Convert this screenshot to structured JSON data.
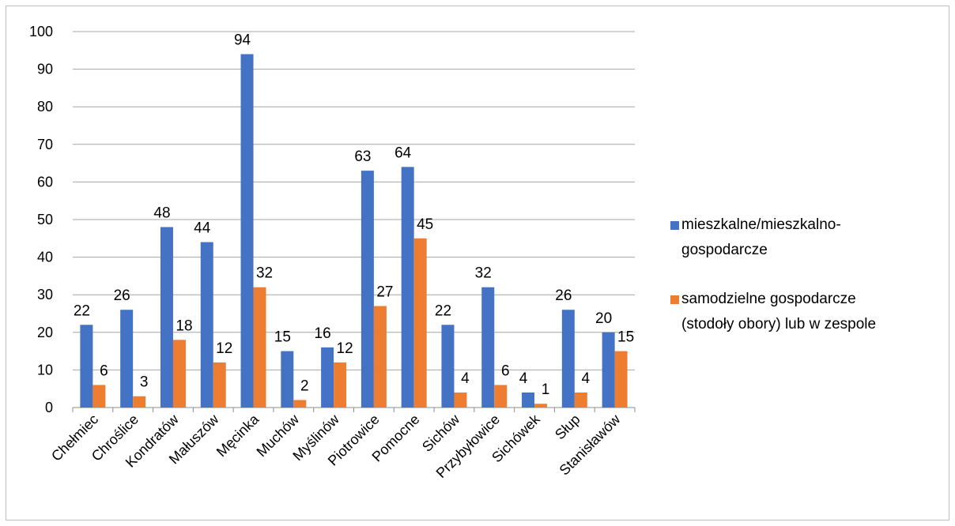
{
  "chart_data": {
    "type": "bar",
    "title": "",
    "xlabel": "",
    "ylabel": "",
    "ylim": [
      0,
      100
    ],
    "yticks": [
      0,
      10,
      20,
      30,
      40,
      50,
      60,
      70,
      80,
      90,
      100
    ],
    "grid": true,
    "legend_position": "right",
    "categories": [
      "Chełmiec",
      "Chroślice",
      "Kondratów",
      "Małuszów",
      "Męcinka",
      "Muchów",
      "Myślinów",
      "Piotrowice",
      "Pomocne",
      "Sichów",
      "Przybyłowice",
      "Sichówek",
      "Słup",
      "Stanisławów"
    ],
    "series": [
      {
        "name": "mieszkalne/mieszkalno-gospodarcze",
        "legend_lines": [
          "mieszkalne/mieszkalno-",
          "gospodarcze"
        ],
        "color": "#4472C4",
        "values": [
          22,
          26,
          48,
          44,
          94,
          15,
          16,
          63,
          64,
          22,
          32,
          4,
          26,
          20
        ]
      },
      {
        "name": "samodzielne gospodarcze (stodoły obory) lub  w zespole",
        "legend_lines": [
          "samodzielne gospodarcze",
          "(stodoły obory) lub  w zespole"
        ],
        "color": "#ED7D31",
        "values": [
          6,
          3,
          18,
          12,
          32,
          2,
          12,
          27,
          45,
          4,
          6,
          1,
          4,
          15
        ]
      }
    ]
  }
}
